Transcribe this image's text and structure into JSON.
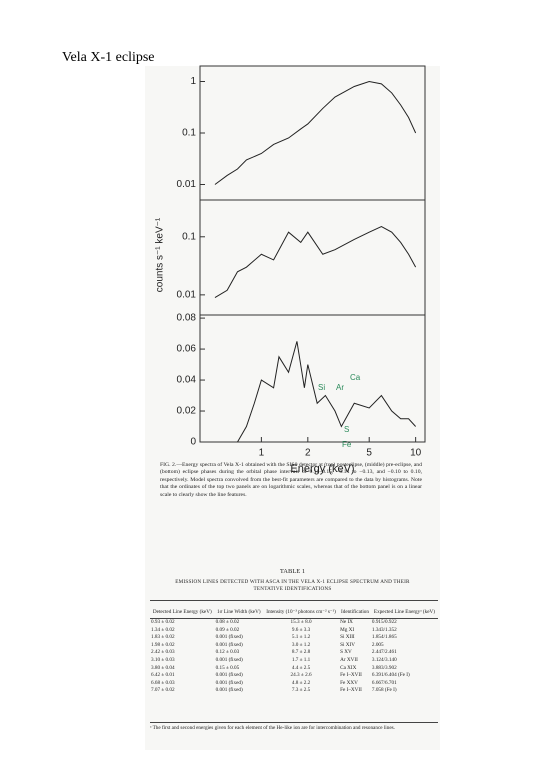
{
  "title": "Vela X-1 eclipse",
  "chart_data": [
    {
      "type": "line",
      "log_x": true,
      "log_y": true,
      "xlim": [
        0.4,
        11.5
      ],
      "ylim": [
        0.005,
        2
      ],
      "yticks": [
        1,
        0.1,
        0.01
      ],
      "x": [
        0.5,
        0.6,
        0.7,
        0.8,
        1,
        1.2,
        1.5,
        1.8,
        2,
        2.5,
        3,
        4,
        5,
        6,
        7,
        8,
        9,
        10
      ],
      "series": [
        {
          "color": "#222222",
          "values": [
            0.01,
            0.015,
            0.02,
            0.03,
            0.04,
            0.06,
            0.08,
            0.12,
            0.15,
            0.3,
            0.5,
            0.8,
            1.0,
            0.9,
            0.6,
            0.35,
            0.2,
            0.1
          ]
        }
      ]
    },
    {
      "type": "line",
      "log_x": true,
      "log_y": true,
      "xlim": [
        0.4,
        11.5
      ],
      "ylim": [
        0.0045,
        0.43
      ],
      "yticks": [
        0.1,
        0.01
      ],
      "y_label": "counts s⁻¹ keV⁻¹",
      "x": [
        0.5,
        0.6,
        0.7,
        0.8,
        1,
        1.2,
        1.5,
        1.8,
        2,
        2.5,
        3,
        4,
        5,
        6,
        7,
        8,
        9,
        10
      ],
      "series": [
        {
          "color": "#222222",
          "values": [
            0.009,
            0.012,
            0.025,
            0.03,
            0.05,
            0.04,
            0.12,
            0.08,
            0.12,
            0.05,
            0.06,
            0.09,
            0.12,
            0.15,
            0.12,
            0.08,
            0.05,
            0.03
          ]
        }
      ]
    },
    {
      "type": "line",
      "log_x": true,
      "log_y": false,
      "xlim": [
        0.4,
        11.5
      ],
      "ylim": [
        0,
        0.082
      ],
      "yticks": [
        0.08,
        0.06,
        0.04,
        0.02,
        0
      ],
      "xticks": [
        1,
        2,
        5,
        10
      ],
      "x_label": "Energy (keV)",
      "annotations": [
        "Si",
        "S",
        "Ar",
        "Ca",
        "Fe"
      ],
      "x": [
        0.7,
        0.8,
        0.9,
        1,
        1.2,
        1.3,
        1.5,
        1.7,
        1.9,
        2,
        2.3,
        2.6,
        3,
        3.3,
        4,
        5,
        6,
        7,
        8,
        9,
        10
      ],
      "series": [
        {
          "color": "#222222",
          "values": [
            0.0,
            0.01,
            0.025,
            0.04,
            0.035,
            0.055,
            0.045,
            0.065,
            0.035,
            0.05,
            0.025,
            0.03,
            0.02,
            0.01,
            0.025,
            0.022,
            0.03,
            0.02,
            0.015,
            0.015,
            0.01
          ]
        }
      ]
    }
  ],
  "figure_caption": "FIG. 2.—Energy spectra of Vela X-1 obtained with the SIS0 detector at (top) posteclipse, (middle) pre-eclipse, and (bottom) eclipse phases during the orbital phase intervals of 0.11–0.15, −0.14 to −0.13, and −0.10 to 0.10, respectively. Model spectra convolved from the best-fit parameters are compared to the data by histograms. Note that the ordinates of the top two panels are on logarithmic scales, whereas that of the bottom panel is on a linear scale to clearly show the line features.",
  "table": {
    "title": "TABLE 1",
    "subtitle": "EMISSION LINES DETECTED WITH ASCA IN THE VELA X-1 ECLIPSE SPECTRUM AND THEIR TENTATIVE IDENTIFICATIONS",
    "columns": [
      "Detected Line Energy (keV)",
      "1σ Line Width (keV)",
      "Intensity (10⁻³ photons cm⁻² s⁻¹)",
      "Identification",
      "Expected Line Energyᵃ (keV)"
    ],
    "rows": [
      [
        "0.93 ± 0.02",
        "0.08 ± 0.02",
        "15.3 ± 8.0",
        "Ne IX",
        "0.915/0.922"
      ],
      [
        "1.34 ± 0.02",
        "0.09 ± 0.02",
        "9.6 ± 3.3",
        "Mg XI",
        "1.343/1.352"
      ],
      [
        "1.83 ± 0.02",
        "0.001 (fixed)",
        "5.1 ± 1.2",
        "Si XIII",
        "1.854/1.865"
      ],
      [
        "1.98 ± 0.02",
        "0.001 (fixed)",
        "3.0 ± 1.2",
        "Si XIV",
        "2.005"
      ],
      [
        "2.42 ± 0.03",
        "0.12 ± 0.03",
        "8.7 ± 2.8",
        "S XV",
        "2.447/2.461"
      ],
      [
        "3.10 ± 0.03",
        "0.001 (fixed)",
        "1.7 ± 1.1",
        "Ar XVII",
        "3.124/3.140"
      ],
      [
        "3.80 ± 0.04",
        "0.15 ± 0.05",
        "4.4 ± 2.5",
        "Ca XIX",
        "3.883/3.902"
      ],
      [
        "6.42 ± 0.01",
        "0.001 (fixed)",
        "24.3 ± 2.6",
        "Fe I–XVII",
        "6.391/6.404 (Fe I)"
      ],
      [
        "6.68 ± 0.03",
        "0.001 (fixed)",
        "4.8 ± 2.2",
        "Fe XXV",
        "6.667/6.701"
      ],
      [
        "7.07 ± 0.02",
        "0.001 (fixed)",
        "7.3 ± 2.5",
        "Fe I–XVII",
        "7.058 (Fe I)"
      ]
    ],
    "footnote": "ᵃ The first and second energies given for each element of the He-like ion are for intercombination and resonance lines."
  }
}
